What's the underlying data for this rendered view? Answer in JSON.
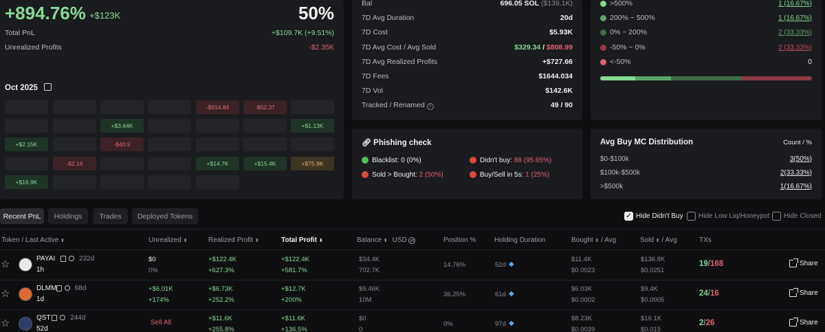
{
  "pnl": {
    "pct": "+894.76%",
    "abs": "+$123K",
    "winrate": "50%",
    "total_label": "Total PnL",
    "total_value": "+$109.7K (+9.51%)",
    "unrealized_label": "Unrealized Profits",
    "unrealized_value": "-$2.35K"
  },
  "calendar": {
    "month": "Oct 2025",
    "cells": [
      "",
      "",
      "",
      "",
      "-$914.84",
      "-$52.37",
      "",
      "",
      "",
      "+$3.64K",
      "",
      "",
      "",
      "+$1.13K",
      "+$2.15K",
      "",
      "-$40.9",
      "",
      "",
      "",
      "",
      "",
      "-$2.16",
      "",
      "",
      "+$14.7K",
      "+$15.4K",
      "+$75.9K",
      "+$16.9K",
      "",
      "",
      "",
      "",
      "",
      ""
    ],
    "cell_types": [
      "e",
      "e",
      "e",
      "e",
      "n",
      "n",
      "e",
      "e",
      "e",
      "p",
      "e",
      "e",
      "e",
      "p",
      "p",
      "e",
      "n",
      "e",
      "e",
      "e",
      "e",
      "e",
      "n",
      "e",
      "e",
      "p",
      "p",
      "w",
      "p",
      "e",
      "e",
      "e",
      "e",
      "x",
      "x"
    ]
  },
  "stats": {
    "rows": [
      {
        "label": "Bal",
        "value": "696.05 SOL",
        "value2": "($139.1K)"
      },
      {
        "label": "7D Avg Duration",
        "value": "20d"
      },
      {
        "label": "7D Cost",
        "value": "$5.93K"
      },
      {
        "label": "7D Avg Cost / Avg Sold",
        "value": "$329.34",
        "sep": "/",
        "value2": "$808.99"
      },
      {
        "label": "7D Avg Realized Profits",
        "value": "+$727.66"
      },
      {
        "label": "7D Fees",
        "value": "$1644.034"
      },
      {
        "label": "7D Vol",
        "value": "$142.6K"
      },
      {
        "label": "Tracked / Renamed",
        "value": "49 / 90"
      }
    ]
  },
  "distribution": {
    "rows": [
      {
        "label": ">500%",
        "value": "1 (16.67%)",
        "color": "#86d993"
      },
      {
        "label": "200% ~ 500%",
        "value": "1 (16.67%)",
        "color": "#5fa36a"
      },
      {
        "label": "0% ~ 200%",
        "value": "2 (33.33%)",
        "color": "#3f6b47"
      },
      {
        "label": "-50% ~ 0%",
        "value": "2 (33.33%)",
        "color": "#8c3b45"
      },
      {
        "label": "<-50%",
        "value": "0",
        "color": "#e0626f"
      }
    ]
  },
  "phishing": {
    "title": "Phishing check",
    "blacklist_label": "Blacklist:",
    "blacklist_value": "0 (0%)",
    "didnt_buy_label": "Didn't buy:",
    "didnt_buy_value": "88 (95.65%)",
    "sold_gt_label": "Sold > Bought:",
    "sold_gt_value": "2 (50%)",
    "buysell_label": "Buy/Sell in 5s:",
    "buysell_value": "1 (25%)"
  },
  "mcdist": {
    "title": "Avg Buy MC Distribution",
    "header_right": "Count / %",
    "rows": [
      {
        "label": "$0-$100k",
        "value": "3(50%)"
      },
      {
        "label": "$100k-$500k",
        "value": "2(33.33%)"
      },
      {
        "label": ">$500k",
        "value": "1(16.67%)"
      }
    ]
  },
  "tabs": [
    "Recent PnL",
    "Holdings",
    "Trades",
    "Deployed Tokens"
  ],
  "filters": {
    "hide_didnt_buy": "Hide Didn't Buy",
    "hide_low_liq": "Hide Low Liq/Honeypot",
    "hide_closed": "Hide Closed"
  },
  "table": {
    "headers": {
      "token": "Token / Last Active",
      "unrealized": "Unrealized",
      "realized": "Realized Profit",
      "total": "Total Profit",
      "balance": "Balance",
      "usd": "USD",
      "position": "Position %",
      "duration": "Holding Duration",
      "bought": "Bought",
      "bought_avg": "/ Avg",
      "sold": "Sold",
      "sold_avg": "/ Avg",
      "txs": "TXs"
    },
    "rows": [
      {
        "name": "PAYAI",
        "age": "232d",
        "active": "1h",
        "unreal1": "$0",
        "unreal2": "0%",
        "real1": "+$122.4K",
        "real2": "+627.3%",
        "tot1": "+$122.4K",
        "tot2": "+581.7%",
        "bal1": "$34.4K",
        "bal2": "702.7K",
        "pos": "14.76%",
        "dur": "52d",
        "bought1": "$11.4K",
        "bought2": "$0.0023",
        "sold1": "$136.8K",
        "sold2": "$0.0251",
        "tx_buy": "19",
        "tx_sell": "168",
        "share": "Share"
      },
      {
        "name": "DLMM",
        "age": "68d",
        "active": "1d",
        "unreal1": "+$6.01K",
        "unreal2": "+174%",
        "real1": "+$6.73K",
        "real2": "+252.2%",
        "tot1": "+$12.7K",
        "tot2": "+200%",
        "bal1": "$9.46K",
        "bal2": "10M",
        "pos": "36.25%",
        "dur": "61d",
        "bought1": "$6.03K",
        "bought2": "$0.0002",
        "sold1": "$9.4K",
        "sold2": "$0.0005",
        "tx_buy": "24",
        "tx_sell": "16",
        "share": "Share"
      },
      {
        "name": "QST",
        "age": "244d",
        "active": "52d",
        "unreal1": "Sell All",
        "unreal2": "",
        "real1": "+$11.6K",
        "real2": "+255.8%",
        "tot1": "+$11.6K",
        "tot2": "+136.5%",
        "bal1": "$0",
        "bal2": "0",
        "pos": "0%",
        "dur": "97d",
        "bought1": "$8.23K",
        "bought2": "$0.0039",
        "sold1": "$16.1K",
        "sold2": "$0.015",
        "tx_buy": "2",
        "tx_sell": "26",
        "share": "Share"
      }
    ]
  }
}
